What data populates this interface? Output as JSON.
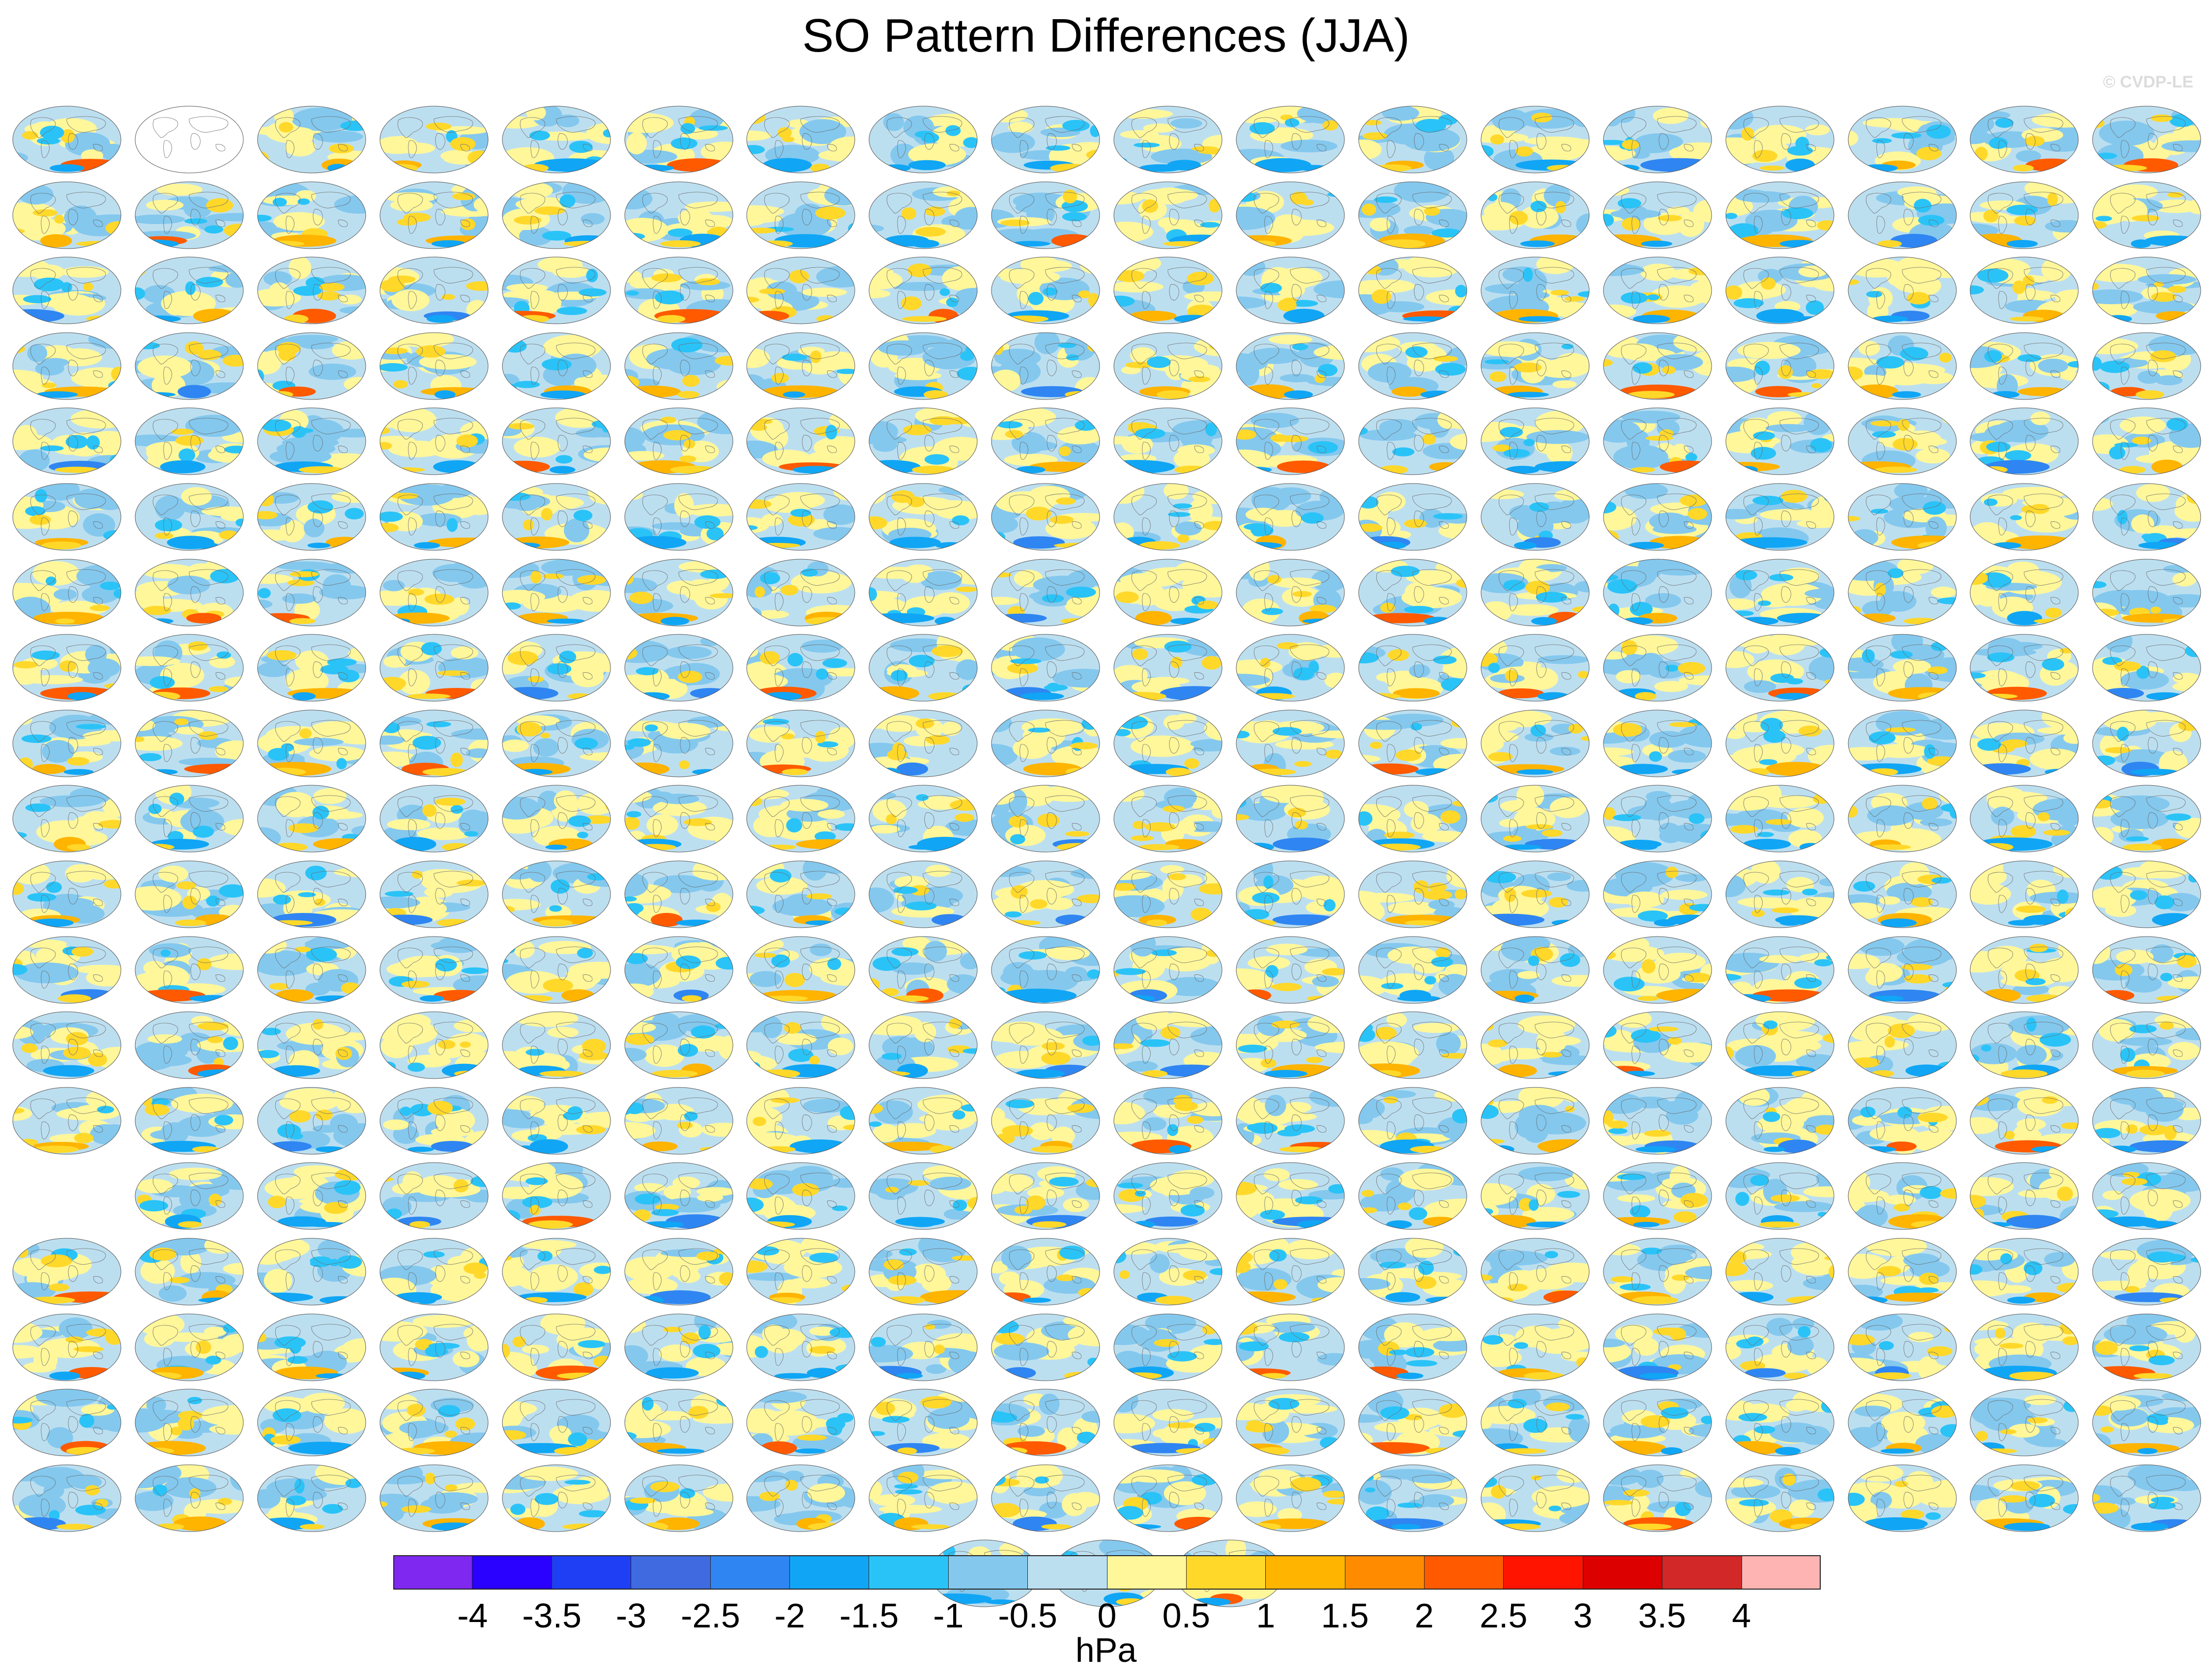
{
  "title": "SO Pattern Differences (JJA)",
  "watermark": "© CVDP-LE",
  "colorbar": {
    "units": "hPa",
    "tick_labels": [
      "-4",
      "-3.5",
      "-3",
      "-2.5",
      "-2",
      "-1.5",
      "-1",
      "-0.5",
      "0",
      "0.5",
      "1",
      "1.5",
      "2",
      "2.5",
      "3",
      "3.5",
      "4"
    ],
    "colors": [
      "#7f28f0",
      "#2a00ff",
      "#1f3ff5",
      "#3f6ae0",
      "#2f86f2",
      "#10a6f5",
      "#2ac3f8",
      "#84c8ee",
      "#bcdff0",
      "#fff79a",
      "#ffd82a",
      "#ffb400",
      "#ff8c00",
      "#ff5a00",
      "#ff1400",
      "#dc0000",
      "#d22828",
      "#ffb4b4"
    ]
  },
  "chart_data": {
    "type": "heatmap",
    "title": "SO Pattern Differences (JJA)",
    "description_of_grid": "Small multiples of global maps (sea level pressure pattern difference), 18 columns",
    "value_range": [
      -4,
      4
    ],
    "units": "hPa",
    "row_counts": [
      17,
      18,
      18,
      18,
      18,
      18,
      18,
      18,
      18,
      18,
      18,
      18,
      18,
      18,
      17,
      18,
      18,
      18,
      18,
      3
    ],
    "panel_caption_colors": [
      "#4a87c0",
      "#3fa0a8",
      "#e28a2b",
      "#a48bd6",
      "#d8b58a"
    ]
  }
}
